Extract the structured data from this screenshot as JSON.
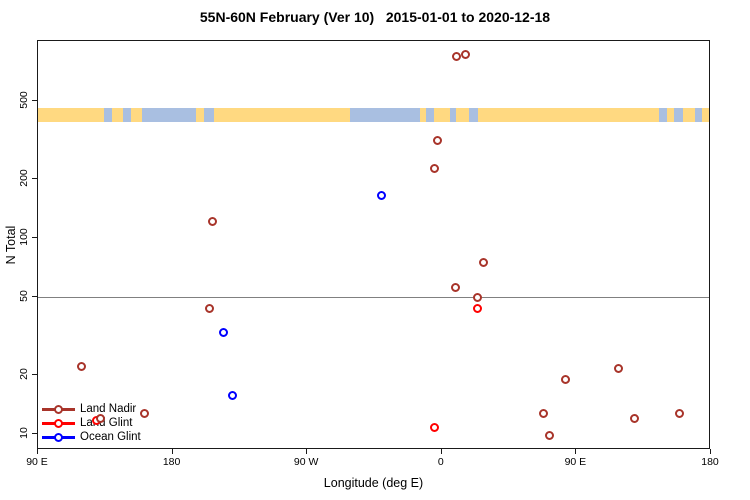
{
  "title": "55N-60N February (Ver 10)   2015-01-01 to 2020-12-18",
  "legend": {
    "items": [
      {
        "label": "Land Nadir",
        "color": "#A8342A"
      },
      {
        "label": "Land Glint",
        "color": "#FF0000"
      },
      {
        "label": "Ocean Glint",
        "color": "#0000FF"
      }
    ]
  },
  "chart_data": {
    "type": "scatter",
    "title": "55N-60N February (Ver 10)   2015-01-01 to 2020-12-18",
    "xlabel": "Longitude (deg E)",
    "ylabel": "N Total",
    "x_axis": {
      "lim": [
        90,
        540
      ],
      "note": "longitude increases eastward from 90E and wraps; values above 180 equal lon-360",
      "ticks": [
        {
          "v": 90,
          "label": "90 E"
        },
        {
          "v": 180,
          "label": "180"
        },
        {
          "v": 270,
          "label": "90 W"
        },
        {
          "v": 360,
          "label": "0"
        },
        {
          "v": 450,
          "label": "90 E"
        },
        {
          "v": 540,
          "label": "180"
        }
      ]
    },
    "y_axis": {
      "scale": "log",
      "lim": [
        8.3,
        1010
      ],
      "ticks": [
        {
          "v": 10,
          "label": "10"
        },
        {
          "v": 20,
          "label": "20"
        },
        {
          "v": 50,
          "label": "50"
        },
        {
          "v": 100,
          "label": "100"
        },
        {
          "v": 200,
          "label": "200"
        },
        {
          "v": 500,
          "label": "500"
        }
      ]
    },
    "reference_line": {
      "y": 50,
      "color": "#808080"
    },
    "map_band": {
      "top_n": 460,
      "bottom_n": 390,
      "ocean_color": "#A9BFE1",
      "land_color": "#FFD981",
      "land_segments": [
        [
          0.0,
          0.098
        ],
        [
          0.111,
          0.126
        ],
        [
          0.138,
          0.155
        ],
        [
          0.236,
          0.248
        ],
        [
          0.263,
          0.465
        ],
        [
          0.569,
          0.578
        ],
        [
          0.59,
          0.614
        ],
        [
          0.623,
          0.643
        ],
        [
          0.655,
          0.926
        ],
        [
          0.938,
          0.948
        ],
        [
          0.961,
          0.979
        ],
        [
          0.99,
          1.0
        ]
      ]
    },
    "series": [
      {
        "name": "Ocean Glint",
        "color": "#0000FF",
        "points": [
          [
            320,
            164
          ],
          [
            214,
            33
          ],
          [
            220,
            15.7
          ]
        ]
      },
      {
        "name": "Land Glint",
        "color": "#FF0000",
        "points": [
          [
            384,
            43.5
          ],
          [
            355,
            10.8
          ],
          [
            129,
            11.8
          ]
        ]
      },
      {
        "name": "Land Nadir",
        "color": "#A8342A",
        "points": [
          [
            370,
            840
          ],
          [
            376,
            860
          ],
          [
            357,
            314
          ],
          [
            355,
            225
          ],
          [
            207,
            122
          ],
          [
            388,
            75
          ],
          [
            369,
            56
          ],
          [
            384,
            49.5
          ],
          [
            205,
            43.5
          ],
          [
            119,
            22
          ],
          [
            478,
            21.5
          ],
          [
            443,
            19
          ],
          [
            161,
            12.8
          ],
          [
            428,
            12.7
          ],
          [
            519,
            12.7
          ],
          [
            489,
            12
          ],
          [
            132,
            12
          ],
          [
            432,
            9.8
          ]
        ]
      }
    ]
  }
}
